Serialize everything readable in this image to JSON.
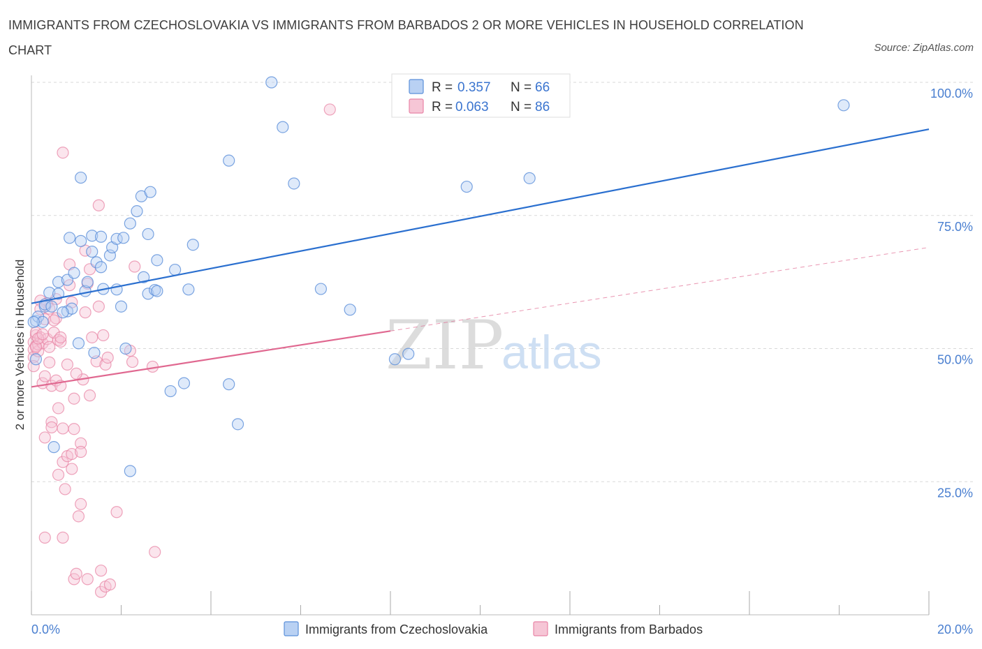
{
  "title": "IMMIGRANTS FROM CZECHOSLOVAKIA VS IMMIGRANTS FROM BARBADOS 2 OR MORE VEHICLES IN HOUSEHOLD CORRELATION CHART",
  "source": "Source: ZipAtlas.com",
  "watermark": {
    "zip": "ZIP",
    "atlas": "atlas"
  },
  "colors": {
    "czech": "#5b8fd9",
    "czech_fill": "#b9d1f3",
    "czech_line": "#2a6fcf",
    "barbados": "#e885a6",
    "barbados_fill": "#f6c6d6",
    "barbados_line": "#e06890",
    "grid": "#d8d8d8",
    "axis_text": "#4a7fd0"
  },
  "legend": {
    "items": [
      {
        "r_label": "R = ",
        "r_value": "0.357",
        "n_label": "N = ",
        "n_value": "66"
      },
      {
        "r_label": "R = ",
        "r_value": "0.063",
        "n_label": "N = ",
        "n_value": "86"
      }
    ]
  },
  "bottom_legend": {
    "czech": "Immigrants from Czechoslovakia",
    "barbados": "Immigrants from Barbados"
  },
  "chart_data": {
    "type": "scatter",
    "title": "IMMIGRANTS FROM CZECHOSLOVAKIA VS IMMIGRANTS FROM BARBADOS 2 OR MORE VEHICLES IN HOUSEHOLD CORRELATION CHART",
    "xlabel": "",
    "ylabel": "2 or more Vehicles in Household",
    "xlim": [
      0,
      20
    ],
    "ylim": [
      0,
      100
    ],
    "x_ticks": [
      0,
      2,
      4,
      6,
      8,
      10,
      12,
      14,
      16,
      18,
      20
    ],
    "x_tick_labels": [
      {
        "value": 0,
        "label": "0.0%"
      },
      {
        "value": 20,
        "label": "20.0%"
      }
    ],
    "y_tick_labels": [
      {
        "value": 100,
        "label": "100.0%"
      },
      {
        "value": 75,
        "label": "75.0%"
      },
      {
        "value": 50,
        "label": "50.0%"
      },
      {
        "value": 25,
        "label": "25.0%"
      }
    ],
    "grid": true,
    "series": [
      {
        "name": "Immigrants from Czechoslovakia",
        "R": 0.357,
        "N": 66,
        "trend": {
          "x": [
            0,
            20
          ],
          "y": [
            58.5,
            91.2
          ],
          "style": "solid"
        },
        "points": [
          [
            0.1,
            48.0
          ],
          [
            0.1,
            55.2
          ],
          [
            0.15,
            56.0
          ],
          [
            0.25,
            55.0
          ],
          [
            0.3,
            57.9
          ],
          [
            0.3,
            58.3
          ],
          [
            0.4,
            60.5
          ],
          [
            0.45,
            57.9
          ],
          [
            0.6,
            60.3
          ],
          [
            0.6,
            62.5
          ],
          [
            0.8,
            57.0
          ],
          [
            0.8,
            62.9
          ],
          [
            0.85,
            70.8
          ],
          [
            0.9,
            57.5
          ],
          [
            0.95,
            64.2
          ],
          [
            1.05,
            51.0
          ],
          [
            1.1,
            82.1
          ],
          [
            1.1,
            70.2
          ],
          [
            1.2,
            60.8
          ],
          [
            1.25,
            62.5
          ],
          [
            1.35,
            71.2
          ],
          [
            1.35,
            68.2
          ],
          [
            1.4,
            49.2
          ],
          [
            1.45,
            66.2
          ],
          [
            1.55,
            65.3
          ],
          [
            1.6,
            61.2
          ],
          [
            1.55,
            71.0
          ],
          [
            1.75,
            67.5
          ],
          [
            1.8,
            69.0
          ],
          [
            1.9,
            70.6
          ],
          [
            1.9,
            61.1
          ],
          [
            2.0,
            57.9
          ],
          [
            2.1,
            50.0
          ],
          [
            2.05,
            70.8
          ],
          [
            2.2,
            73.5
          ],
          [
            2.2,
            27.0
          ],
          [
            2.35,
            75.8
          ],
          [
            2.45,
            78.6
          ],
          [
            2.5,
            63.4
          ],
          [
            2.6,
            60.3
          ],
          [
            2.6,
            71.5
          ],
          [
            2.65,
            79.4
          ],
          [
            2.75,
            61.0
          ],
          [
            2.8,
            66.6
          ],
          [
            2.8,
            60.8
          ],
          [
            3.1,
            42.0
          ],
          [
            3.2,
            64.8
          ],
          [
            3.4,
            43.5
          ],
          [
            3.5,
            61.1
          ],
          [
            3.6,
            69.5
          ],
          [
            4.4,
            85.3
          ],
          [
            4.4,
            43.3
          ],
          [
            4.6,
            35.8
          ],
          [
            5.35,
            100.0
          ],
          [
            5.6,
            91.6
          ],
          [
            5.85,
            81.0
          ],
          [
            6.45,
            61.2
          ],
          [
            7.1,
            57.3
          ],
          [
            8.1,
            48.0
          ],
          [
            8.4,
            49.0
          ],
          [
            9.7,
            80.4
          ],
          [
            11.1,
            82.0
          ],
          [
            18.1,
            95.7
          ],
          [
            0.05,
            55.0
          ],
          [
            0.5,
            31.5
          ],
          [
            0.7,
            56.8
          ]
        ]
      },
      {
        "name": "Immigrants from Barbados",
        "R": 0.063,
        "N": 86,
        "trend": {
          "x": [
            0,
            8
          ],
          "y": [
            42.8,
            53.3
          ],
          "style": "solid",
          "extension": {
            "x": [
              8,
              20
            ],
            "y": [
              53.3,
              69.0
            ],
            "style": "dashed"
          }
        },
        "points": [
          [
            0.05,
            51.2
          ],
          [
            0.05,
            49.8
          ],
          [
            0.05,
            48.4
          ],
          [
            0.1,
            52.5
          ],
          [
            0.1,
            50.5
          ],
          [
            0.1,
            53.0
          ],
          [
            0.15,
            49.5
          ],
          [
            0.15,
            50.8
          ],
          [
            0.2,
            59.0
          ],
          [
            0.2,
            52.1
          ],
          [
            0.25,
            51.0
          ],
          [
            0.25,
            43.5
          ],
          [
            0.3,
            33.3
          ],
          [
            0.3,
            14.5
          ],
          [
            0.3,
            55.5
          ],
          [
            0.35,
            58.5
          ],
          [
            0.35,
            51.8
          ],
          [
            0.4,
            50.3
          ],
          [
            0.4,
            47.4
          ],
          [
            0.45,
            43.0
          ],
          [
            0.45,
            36.2
          ],
          [
            0.45,
            35.2
          ],
          [
            0.5,
            53.0
          ],
          [
            0.55,
            55.7
          ],
          [
            0.55,
            44.0
          ],
          [
            0.6,
            38.8
          ],
          [
            0.6,
            26.3
          ],
          [
            0.6,
            51.6
          ],
          [
            0.65,
            51.3
          ],
          [
            0.65,
            43.0
          ],
          [
            0.7,
            35.0
          ],
          [
            0.7,
            28.7
          ],
          [
            0.7,
            14.5
          ],
          [
            0.7,
            86.8
          ],
          [
            0.75,
            23.6
          ],
          [
            0.8,
            47.0
          ],
          [
            0.8,
            29.8
          ],
          [
            0.85,
            65.8
          ],
          [
            0.85,
            61.9
          ],
          [
            0.9,
            58.7
          ],
          [
            0.9,
            30.2
          ],
          [
            0.9,
            27.4
          ],
          [
            0.95,
            40.6
          ],
          [
            0.95,
            34.9
          ],
          [
            0.95,
            6.7
          ],
          [
            1.0,
            7.7
          ],
          [
            1.05,
            18.5
          ],
          [
            1.1,
            32.2
          ],
          [
            1.1,
            30.6
          ],
          [
            1.1,
            20.8
          ],
          [
            1.15,
            44.2
          ],
          [
            1.2,
            56.8
          ],
          [
            1.2,
            68.4
          ],
          [
            1.25,
            62.2
          ],
          [
            1.25,
            6.7
          ],
          [
            1.3,
            41.2
          ],
          [
            1.3,
            64.9
          ],
          [
            1.35,
            52.1
          ],
          [
            1.45,
            47.6
          ],
          [
            1.5,
            57.9
          ],
          [
            1.5,
            76.9
          ],
          [
            1.55,
            4.3
          ],
          [
            1.55,
            8.3
          ],
          [
            1.6,
            52.5
          ],
          [
            1.65,
            47.0
          ],
          [
            1.65,
            5.3
          ],
          [
            1.7,
            48.3
          ],
          [
            1.75,
            5.7
          ],
          [
            1.9,
            19.3
          ],
          [
            2.2,
            49.6
          ],
          [
            2.25,
            47.5
          ],
          [
            2.3,
            65.4
          ],
          [
            2.7,
            46.6
          ],
          [
            2.75,
            11.8
          ],
          [
            6.65,
            94.9
          ],
          [
            0.05,
            46.7
          ],
          [
            0.1,
            50.3
          ],
          [
            0.15,
            51.9
          ],
          [
            0.2,
            57.4
          ],
          [
            0.25,
            52.7
          ],
          [
            0.3,
            44.8
          ],
          [
            0.4,
            57.5
          ],
          [
            0.5,
            55.3
          ],
          [
            0.55,
            59.3
          ],
          [
            0.65,
            52.1
          ],
          [
            1.0,
            45.3
          ]
        ]
      }
    ]
  }
}
